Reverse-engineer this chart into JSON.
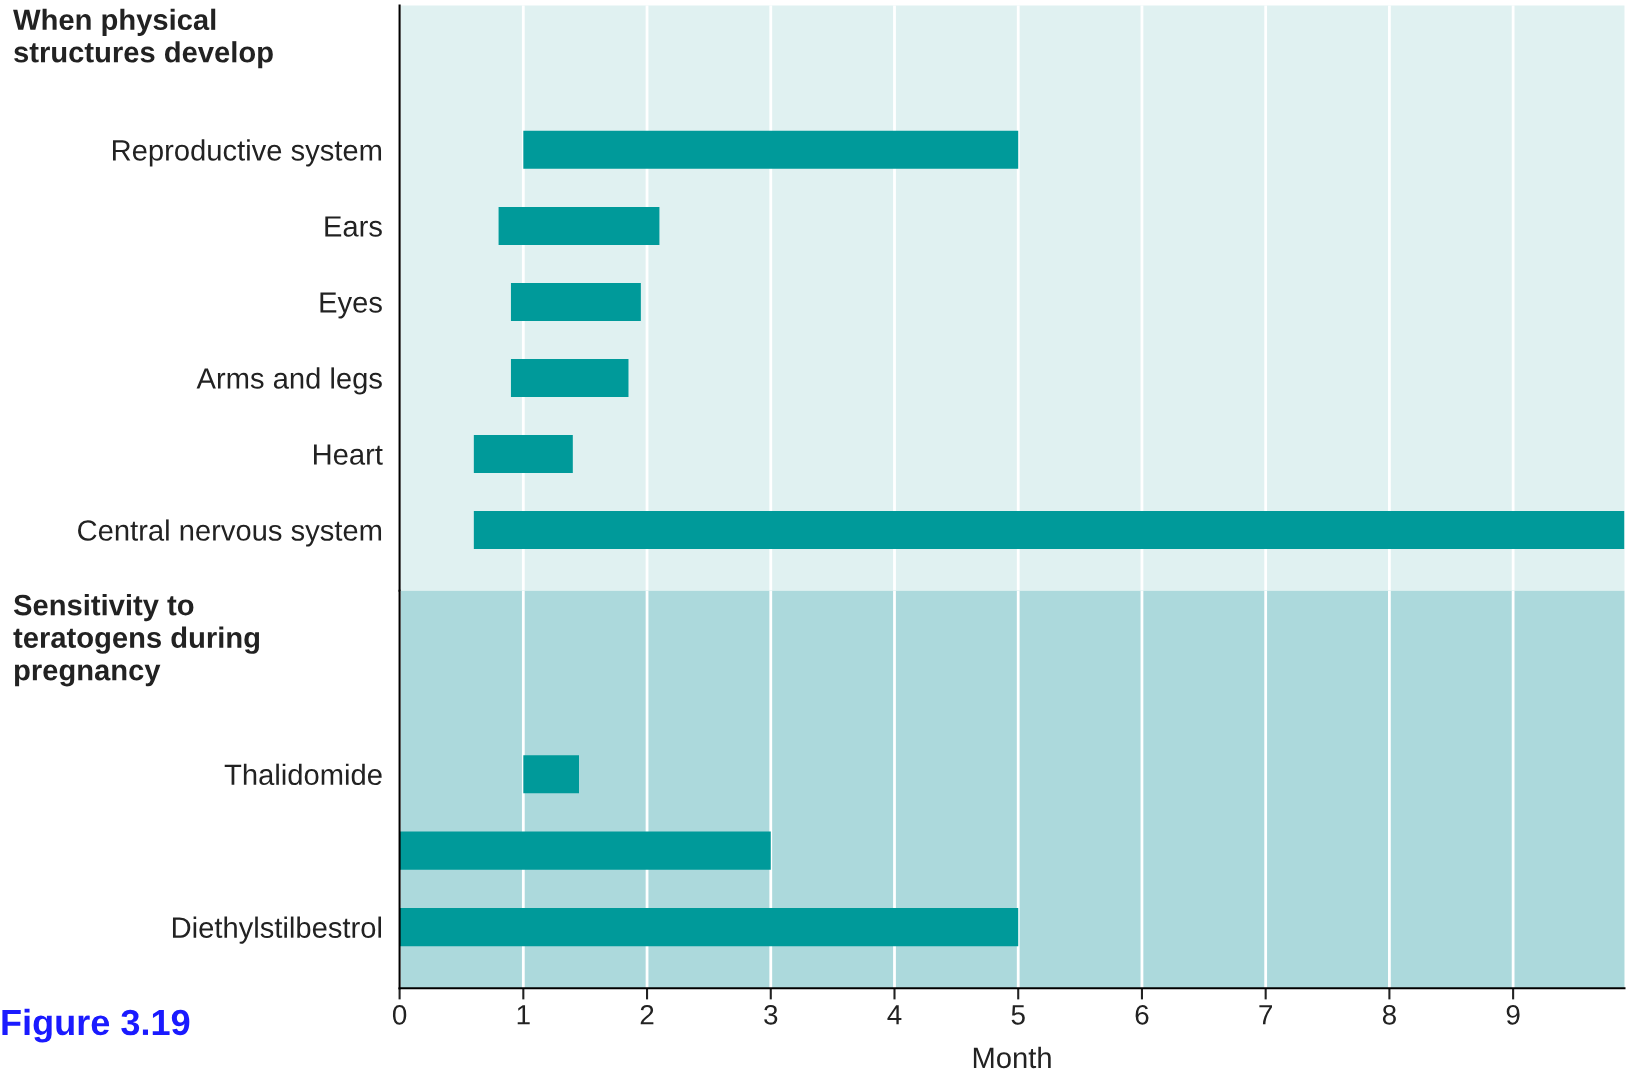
{
  "chart_data": [
    {
      "type": "bar",
      "orientation": "horizontal",
      "title": "When physical\nstructures develop",
      "categories": [
        "Reproductive system",
        "Ears",
        "Eyes",
        "Arms and legs",
        "Heart",
        "Central nervous system"
      ],
      "base": [
        1.0,
        0.8,
        0.9,
        0.9,
        0.6,
        0.6
      ],
      "values": [
        4.0,
        1.3,
        1.05,
        0.95,
        0.8,
        9.3
      ],
      "color": "#009a9a",
      "xlim": [
        0,
        9.9
      ],
      "xticks": [
        0,
        1,
        2,
        3,
        4,
        5,
        6,
        7,
        8,
        9
      ],
      "grid": "x",
      "tick_labels": "y"
    },
    {
      "type": "bar",
      "orientation": "horizontal",
      "title": "Sensitivity to\nteratogens during\npregnancy",
      "categories": [
        "Thalidomide",
        null,
        "Diethylstilbestrol"
      ],
      "base": [
        1.0,
        0,
        0
      ],
      "values": [
        0.45,
        3.0,
        5.0
      ],
      "color": "#009a9a",
      "xlim": [
        0,
        9.9
      ],
      "xticks": [
        0,
        1,
        2,
        3,
        4,
        5,
        6,
        7,
        8,
        9
      ],
      "xlabel": "Month",
      "grid": "x",
      "annotations": [
        "Figure 3.19"
      ]
    }
  ]
}
